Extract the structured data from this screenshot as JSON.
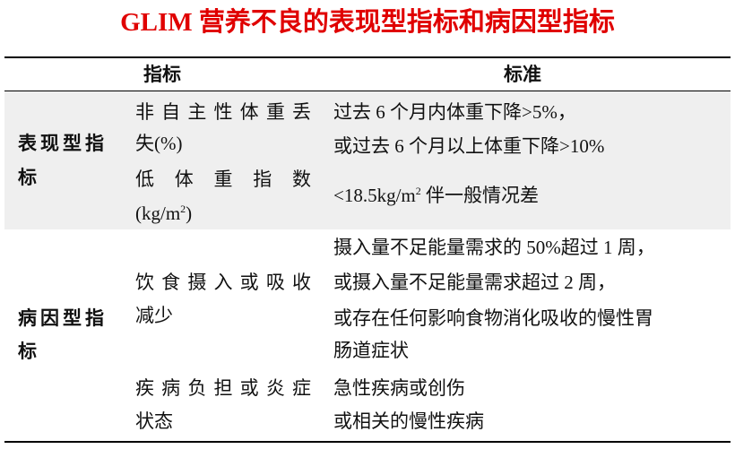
{
  "title": "GLIM 营养不良的表现型指标和病因型指标",
  "header": {
    "indicator": "指标",
    "criteria": "标准"
  },
  "rows": [
    {
      "category": [
        "表现型指",
        "标"
      ],
      "items": [
        {
          "name": [
            "非自主性体重丢",
            "失(%)"
          ],
          "criteria": [
            "过去 6 个月内体重下降>5%，",
            "或过去 6 个月以上体重下降>10%"
          ]
        },
        {
          "name": [
            "低体重指数",
            "(kg/m",
            "2",
            ")"
          ],
          "criteria": [
            "<18.5kg/m",
            "2",
            " 伴一般情况差"
          ]
        }
      ]
    },
    {
      "category": [
        "病因型指",
        "标"
      ],
      "items": [
        {
          "name": [
            "饮食摄入或吸收",
            "减少"
          ],
          "criteria": [
            "摄入量不足能量需求的 50%超过 1 周，",
            "或摄入量不足能量需求超过 2 周，",
            "或存在任何影响食物消化吸收的慢性胃",
            "肠道症状"
          ]
        },
        {
          "name": [
            "疾病负担或炎症",
            "状态"
          ],
          "criteria": [
            "急性疾病或创伤",
            "或相关的慢性疾病"
          ]
        }
      ]
    }
  ]
}
